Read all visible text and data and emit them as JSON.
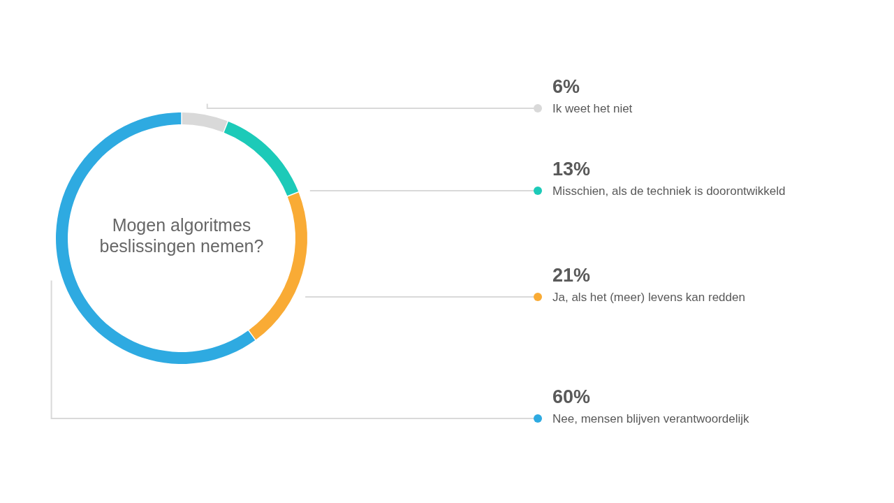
{
  "chart_data": {
    "type": "donut",
    "title": "Mogen algoritmes beslissingen nemen?",
    "categories": [
      "Ik weet het niet",
      "Misschien, als de techniek is doorontwikkeld",
      "Ja, als het (meer) levens kan redden",
      "Nee, mensen blijven verantwoordelijk"
    ],
    "values": [
      6,
      13,
      21,
      60
    ],
    "value_labels": [
      "6%",
      "13%",
      "21%",
      "60%"
    ],
    "colors": [
      "#d9d9d9",
      "#1ccab8",
      "#f9ab35",
      "#2eaae1"
    ],
    "legend": "right"
  }
}
